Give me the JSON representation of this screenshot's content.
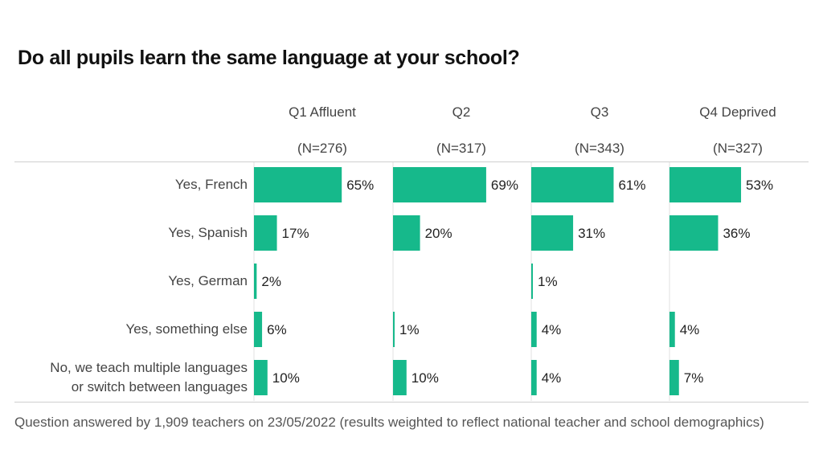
{
  "title": "Do all pupils learn the same language at your school?",
  "footer": "Question answered by 1,909 teachers on 23/05/2022 (results weighted to reflect national teacher and school demographics)",
  "chart_data": {
    "type": "bar",
    "orientation": "horizontal",
    "title": "Do all pupils learn the same language at your school?",
    "bar_color": "#16b98b",
    "categories": [
      "Yes, French",
      "Yes, Spanish",
      "Yes, German",
      "Yes, something else",
      "No, we teach multiple languages or switch between languages"
    ],
    "category_lines": [
      [
        "Yes, French"
      ],
      [
        "Yes, Spanish"
      ],
      [
        "Yes, German"
      ],
      [
        "Yes, something else"
      ],
      [
        "No, we teach multiple languages",
        "or switch between languages"
      ]
    ],
    "panels": [
      {
        "name": "Q1 Affluent",
        "n": "(N=276)",
        "values": [
          65,
          17,
          2,
          6,
          10
        ]
      },
      {
        "name": "Q2",
        "n": "(N=317)",
        "values": [
          69,
          20,
          0,
          1,
          10
        ]
      },
      {
        "name": "Q3",
        "n": "(N=343)",
        "values": [
          61,
          31,
          1,
          4,
          4
        ]
      },
      {
        "name": "Q4 Deprived",
        "n": "(N=327)",
        "values": [
          53,
          36,
          0,
          4,
          7
        ]
      }
    ],
    "value_unit": "%",
    "hide_zero_labels": true
  }
}
